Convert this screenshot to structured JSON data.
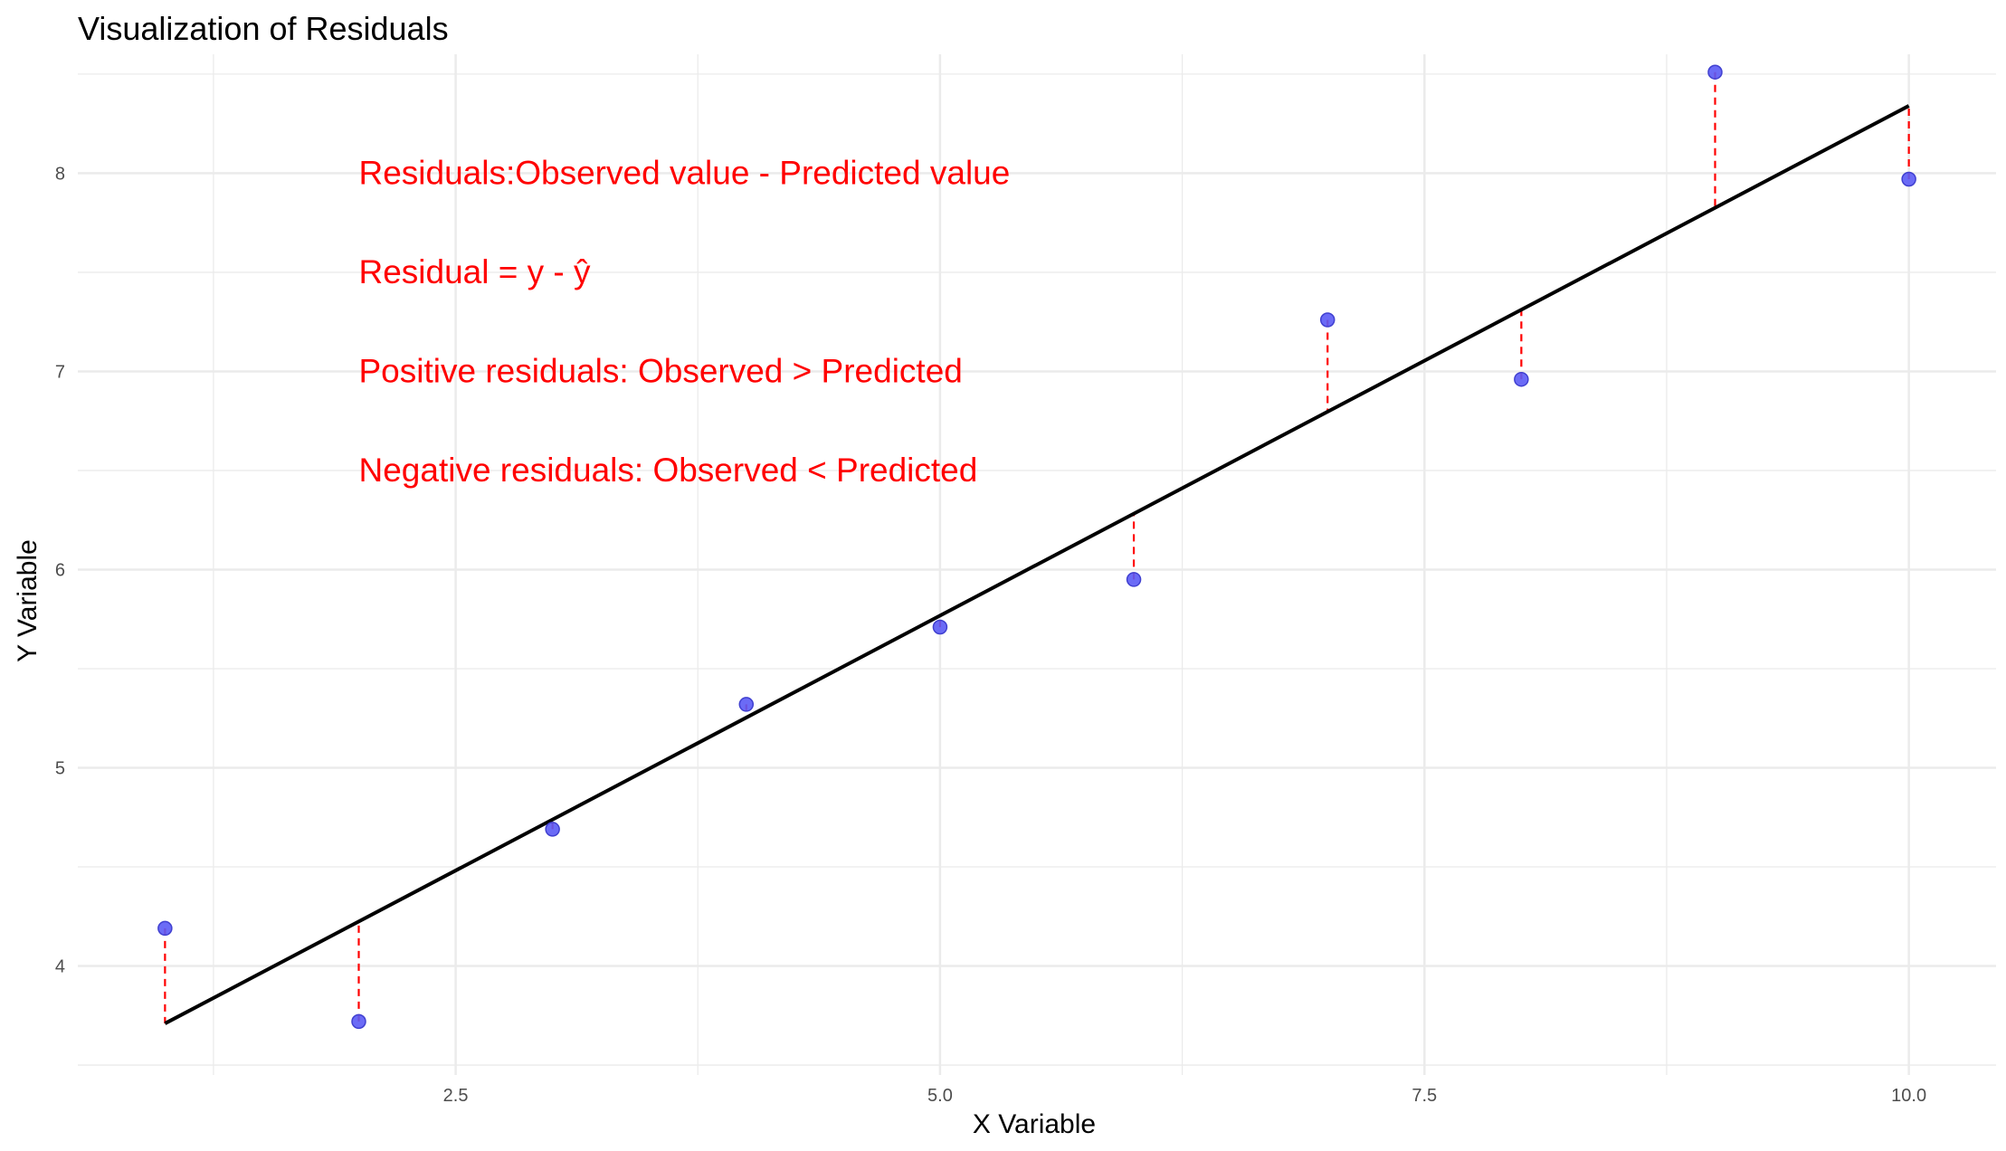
{
  "chart_data": {
    "type": "scatter",
    "title": "Visualization of Residuals",
    "xlabel": "X Variable",
    "ylabel": "Y Variable",
    "xlim": [
      0.55,
      10.45
    ],
    "ylim": [
      3.45,
      8.6
    ],
    "x_ticks": [
      2.5,
      5.0,
      7.5,
      10.0
    ],
    "x_tick_labels": [
      "2.5",
      "5.0",
      "7.5",
      "10.0"
    ],
    "x_minor_ticks": [
      1.25,
      3.75,
      6.25,
      8.75
    ],
    "y_ticks": [
      4,
      5,
      6,
      7,
      8
    ],
    "y_tick_labels": [
      "4",
      "5",
      "6",
      "7",
      "8"
    ],
    "y_minor_ticks": [
      3.5,
      4.5,
      5.5,
      6.5,
      7.5,
      8.5
    ],
    "grid": true,
    "points": {
      "x": [
        1,
        2,
        3,
        4,
        5,
        6,
        7,
        8,
        9,
        10
      ],
      "y": [
        4.19,
        3.72,
        4.69,
        5.32,
        5.71,
        5.95,
        7.26,
        6.96,
        8.51,
        7.97
      ]
    },
    "regression_line": {
      "x": [
        1,
        10
      ],
      "y": [
        3.71,
        8.34
      ]
    },
    "residuals": {
      "predicted": [
        3.71,
        4.22,
        4.74,
        5.25,
        5.77,
        6.28,
        6.8,
        7.31,
        7.83,
        8.34
      ]
    },
    "annotations": [
      {
        "text": "Residuals:Observed value - Predicted value",
        "x": 2,
        "y": 8.0
      },
      {
        "text": "Residual = y - ŷ",
        "x": 2,
        "y": 7.5
      },
      {
        "text": "Positive residuals: Observed > Predicted",
        "x": 2,
        "y": 7.0
      },
      {
        "text": "Negative residuals: Observed < Predicted",
        "x": 2,
        "y": 6.5
      }
    ],
    "colors": {
      "points": "#5b5bf5",
      "point_outline": "#4040d0",
      "regression_line": "#000000",
      "residual_lines": "#ff0000",
      "annotation_text": "#ff0000",
      "grid": "#ebebeb"
    }
  }
}
